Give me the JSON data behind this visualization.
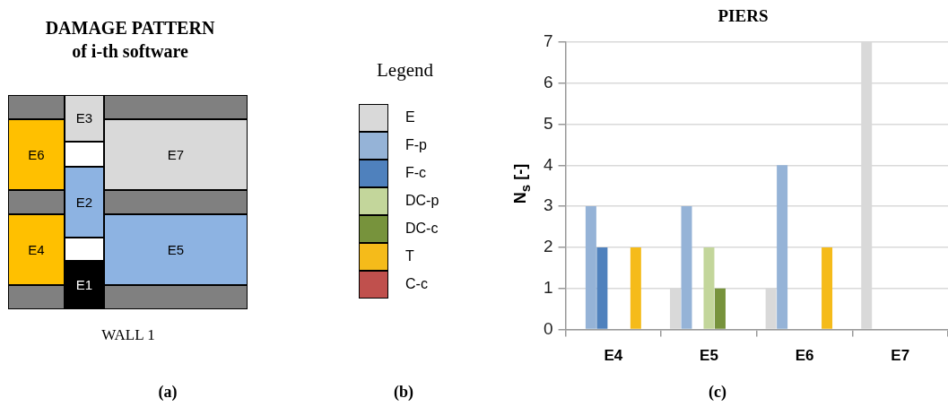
{
  "chart_data": [
    {
      "type": "other",
      "title": "DAMAGE PATTERN\nof i-th software",
      "annotations": [
        "E1",
        "E2",
        "E3",
        "E4",
        "E5",
        "E6",
        "E7",
        "WALL 1",
        "(a)"
      ]
    },
    {
      "type": "bar",
      "title": "PIERS",
      "ylabel": "N$_{s}$ [-]",
      "legend_title": "Legend",
      "legend": "left",
      "categories": [
        "E4",
        "E5",
        "E6",
        "E7"
      ],
      "ylim": [
        0,
        7
      ],
      "yticks": [
        0,
        1,
        2,
        3,
        4,
        5,
        6,
        7
      ],
      "grid": "y",
      "annotations": [
        "(b)",
        "(c)"
      ],
      "series": [
        {
          "name": "E",
          "color": "#d9d9d9",
          "values": [
            0,
            1,
            1,
            7
          ]
        },
        {
          "name": "F-p",
          "color": "#95b3d7",
          "values": [
            3,
            3,
            4,
            0
          ]
        },
        {
          "name": "F-c",
          "color": "#4f81bd",
          "values": [
            2,
            0,
            0,
            0
          ]
        },
        {
          "name": "DC-p",
          "color": "#c3d69b",
          "values": [
            0,
            2,
            0,
            0
          ]
        },
        {
          "name": "DC-c",
          "color": "#77933c",
          "values": [
            0,
            1,
            0,
            0
          ]
        },
        {
          "name": "T",
          "color": "#f5bb1a",
          "values": [
            2,
            0,
            2,
            0
          ]
        },
        {
          "name": "C-c",
          "color": "#c0504d",
          "values": [
            0,
            0,
            0,
            0
          ]
        }
      ]
    }
  ]
}
